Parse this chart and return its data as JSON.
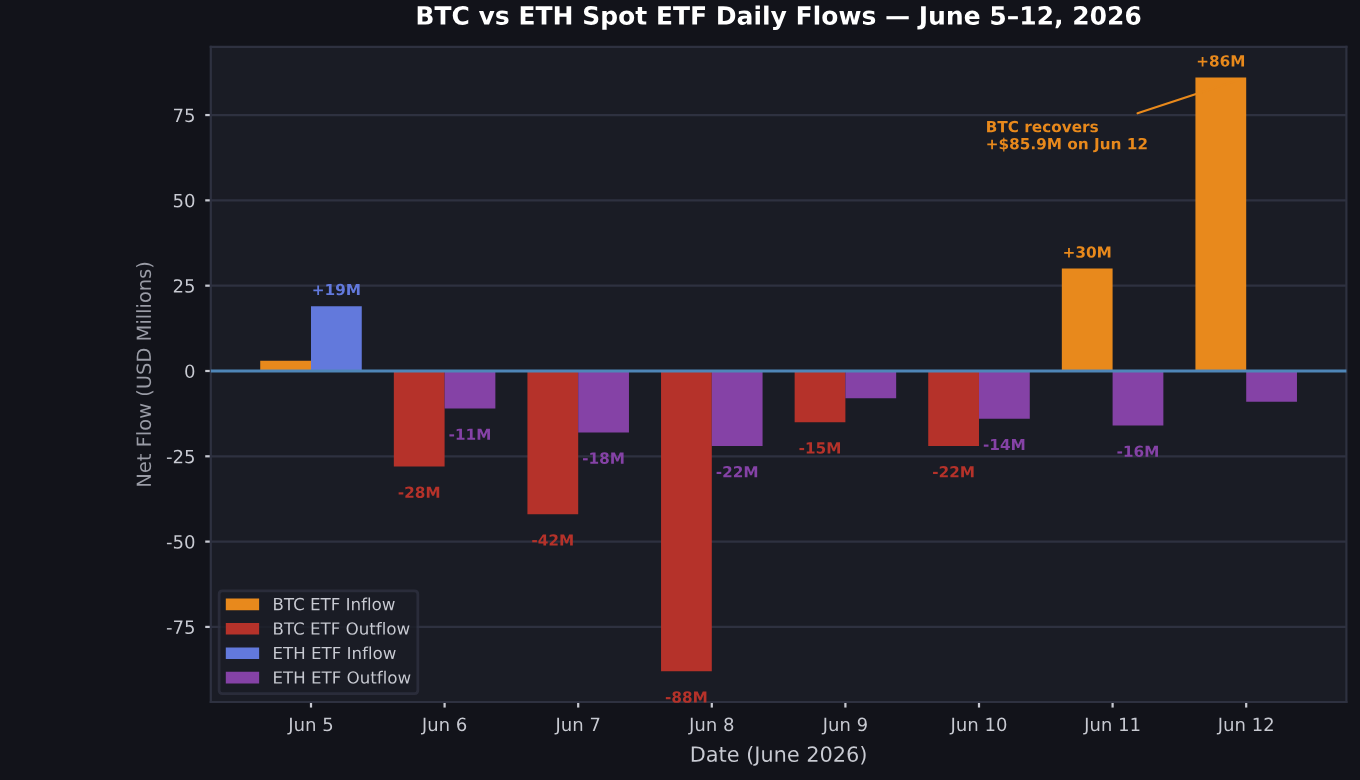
{
  "chart_data": {
    "type": "bar",
    "title": "BTC vs ETH Spot ETF Daily Flows — June 5–12, 2026",
    "xlabel": "Date (June 2026)",
    "ylabel": "Net Flow (USD Millions)",
    "categories": [
      "Jun 5",
      "Jun 6",
      "Jun 7",
      "Jun 8",
      "Jun 9",
      "Jun 10",
      "Jun 11",
      "Jun 12"
    ],
    "series": [
      {
        "name": "BTC ETF Inflow",
        "color": "#e8891c",
        "values": [
          3,
          null,
          null,
          null,
          null,
          null,
          30,
          86
        ],
        "value_labels": [
          null,
          null,
          null,
          null,
          null,
          null,
          "+30M",
          "+86M"
        ]
      },
      {
        "name": "BTC ETF Outflow",
        "color": "#b5322a",
        "values": [
          null,
          -28,
          -42,
          -88,
          -15,
          -22,
          null,
          null
        ],
        "value_labels": [
          null,
          "-28M",
          "-42M",
          "-88M",
          "-15M",
          "-22M",
          null,
          null
        ]
      },
      {
        "name": "ETH ETF Inflow",
        "color": "#6279dc",
        "values": [
          19,
          null,
          null,
          null,
          null,
          null,
          null,
          null
        ],
        "value_labels": [
          "+19M",
          null,
          null,
          null,
          null,
          null,
          null,
          null
        ]
      },
      {
        "name": "ETH ETF Outflow",
        "color": "#8542a6",
        "values": [
          null,
          -11,
          -18,
          -22,
          -8,
          -14,
          -16,
          -9
        ],
        "value_labels": [
          null,
          "-11M",
          "-18M",
          "-22M",
          null,
          "-14M",
          "-16M",
          null
        ]
      }
    ],
    "ylim": [
      -97,
      95
    ],
    "yticks": [
      -75,
      -50,
      -25,
      0,
      25,
      50,
      75
    ],
    "grid": "y",
    "legend": "bottom left",
    "ref_lines": [
      {
        "axis": "y",
        "value": 0,
        "color": "#4f86b8"
      }
    ],
    "annotations": [
      {
        "text": "BTC recovers\n+$85.9M on Jun 12",
        "x": "Jun 12",
        "y": 86
      }
    ]
  }
}
